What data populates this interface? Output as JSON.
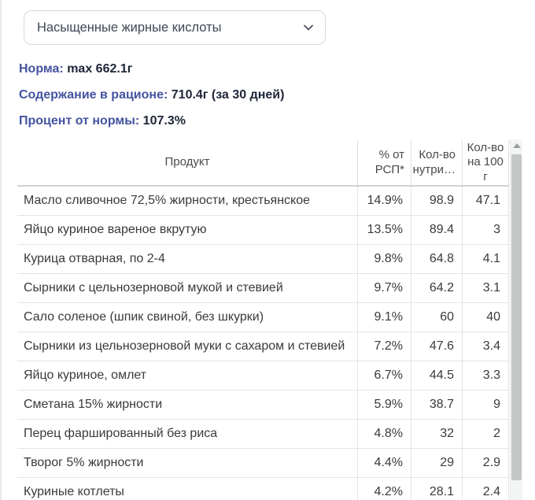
{
  "select": {
    "value": "Насыщенные жирные кислоты"
  },
  "stats": [
    {
      "label": "Норма:",
      "value": "max 662.1г"
    },
    {
      "label": "Содержание в рационе:",
      "value": "710.4г (за 30 дней)"
    },
    {
      "label": "Процент от нормы:",
      "value": "107.3%"
    }
  ],
  "table": {
    "headers": [
      "Продукт",
      "% от РСП*",
      "Кол-во нутри…",
      "Кол-во на 100 г"
    ],
    "rows": [
      [
        "Масло сливочное 72,5% жирности, крестьянское",
        "14.9%",
        "98.9",
        "47.1"
      ],
      [
        "Яйцо куриное вареное вкрутую",
        "13.5%",
        "89.4",
        "3"
      ],
      [
        "Курица отварная, по 2-4",
        "9.8%",
        "64.8",
        "4.1"
      ],
      [
        "Сырники с цельнозерновой мукой и стевией",
        "9.7%",
        "64.2",
        "3.1"
      ],
      [
        "Сало соленое (шпик свиной, без шкурки)",
        "9.1%",
        "60",
        "40"
      ],
      [
        "Сырники из цельнозерновой муки с сахаром и стевией",
        "7.2%",
        "47.6",
        "3.4"
      ],
      [
        "Яйцо куриное, омлет",
        "6.7%",
        "44.5",
        "3.3"
      ],
      [
        "Сметана 15% жирности",
        "5.9%",
        "38.7",
        "9"
      ],
      [
        "Перец фаршированный без риса",
        "4.8%",
        "32",
        "2"
      ],
      [
        "Творог 5% жирности",
        "4.4%",
        "29",
        "2.9"
      ],
      [
        "Куриные котлеты",
        "4.2%",
        "28.1",
        "2.4"
      ]
    ]
  },
  "colors": {
    "accent_blue": "#4353a0",
    "value_dark": "#20263b",
    "table_text": "#3a3a3a",
    "border": "#e4e4e4",
    "scrollbar_thumb": "#c3c7c6"
  }
}
